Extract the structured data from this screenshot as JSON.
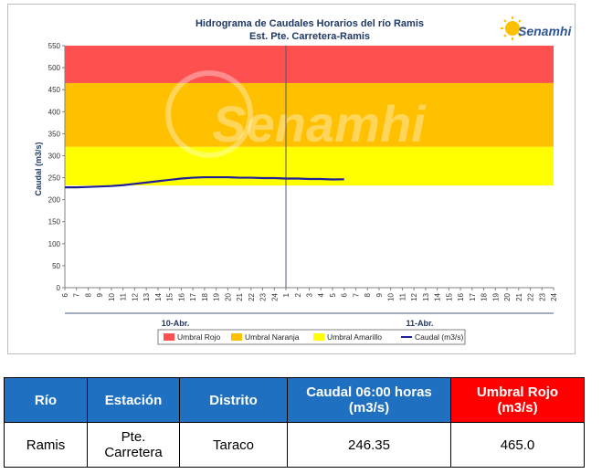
{
  "chart_data": {
    "type": "line",
    "title": "Hidrograma de Caudales Horarios del río Ramis",
    "subtitle": "Est. Pte. Carretera-Ramis",
    "ylabel": "Caudal  (m3/s)",
    "ylim": [
      0,
      550
    ],
    "yticks": [
      "0",
      "50",
      "100",
      "150",
      "200",
      "250",
      "300",
      "350",
      "400",
      "450",
      "500",
      "550"
    ],
    "x_ticks": [
      "6",
      "7",
      "8",
      "9",
      "10",
      "11",
      "12",
      "13",
      "14",
      "15",
      "16",
      "17",
      "18",
      "19",
      "20",
      "21",
      "22",
      "23",
      "24",
      "1",
      "2",
      "3",
      "4",
      "5",
      "6",
      "7",
      "8",
      "9",
      "10",
      "11",
      "12",
      "13",
      "14",
      "15",
      "16",
      "17",
      "18",
      "19",
      "20",
      "21",
      "22",
      "23",
      "24"
    ],
    "day_labels": [
      "10-Abr.",
      "11-Abr."
    ],
    "thresholds": {
      "rojo": 465,
      "naranja": 320,
      "amarillo": 232
    },
    "series": [
      {
        "name": "Caudal (m3/s)",
        "x_index": [
          0,
          1,
          2,
          3,
          4,
          5,
          6,
          7,
          8,
          9,
          10,
          11,
          12,
          13,
          14,
          15,
          16,
          17,
          18,
          19,
          20,
          21,
          22,
          23,
          24
        ],
        "values": [
          228,
          228,
          229,
          230,
          231,
          233,
          236,
          239,
          242,
          245,
          248,
          250,
          251,
          251,
          251,
          250,
          250,
          249,
          249,
          248,
          248,
          247,
          247,
          246,
          246.35
        ]
      }
    ],
    "legend": [
      "Umbral Rojo",
      "Umbral Naranja",
      "Umbral Amarillo",
      "Caudal (m3/s)"
    ],
    "legend_position": "bottom",
    "colors": {
      "rojo": "#ff5050",
      "naranja": "#ffc000",
      "amarillo": "#ffff00",
      "caudal": "#1f1f99"
    },
    "logo_text": "Senamhi",
    "watermark": "Senamhi"
  },
  "table": {
    "headers": [
      "Río",
      "Estación",
      "Distrito",
      "Caudal  06:00 horas (m3/s)",
      "Umbral Rojo (m3/s)"
    ],
    "row": [
      "Ramis",
      "Pte. Carretera",
      "Taraco",
      "246.35",
      "465.0"
    ]
  }
}
